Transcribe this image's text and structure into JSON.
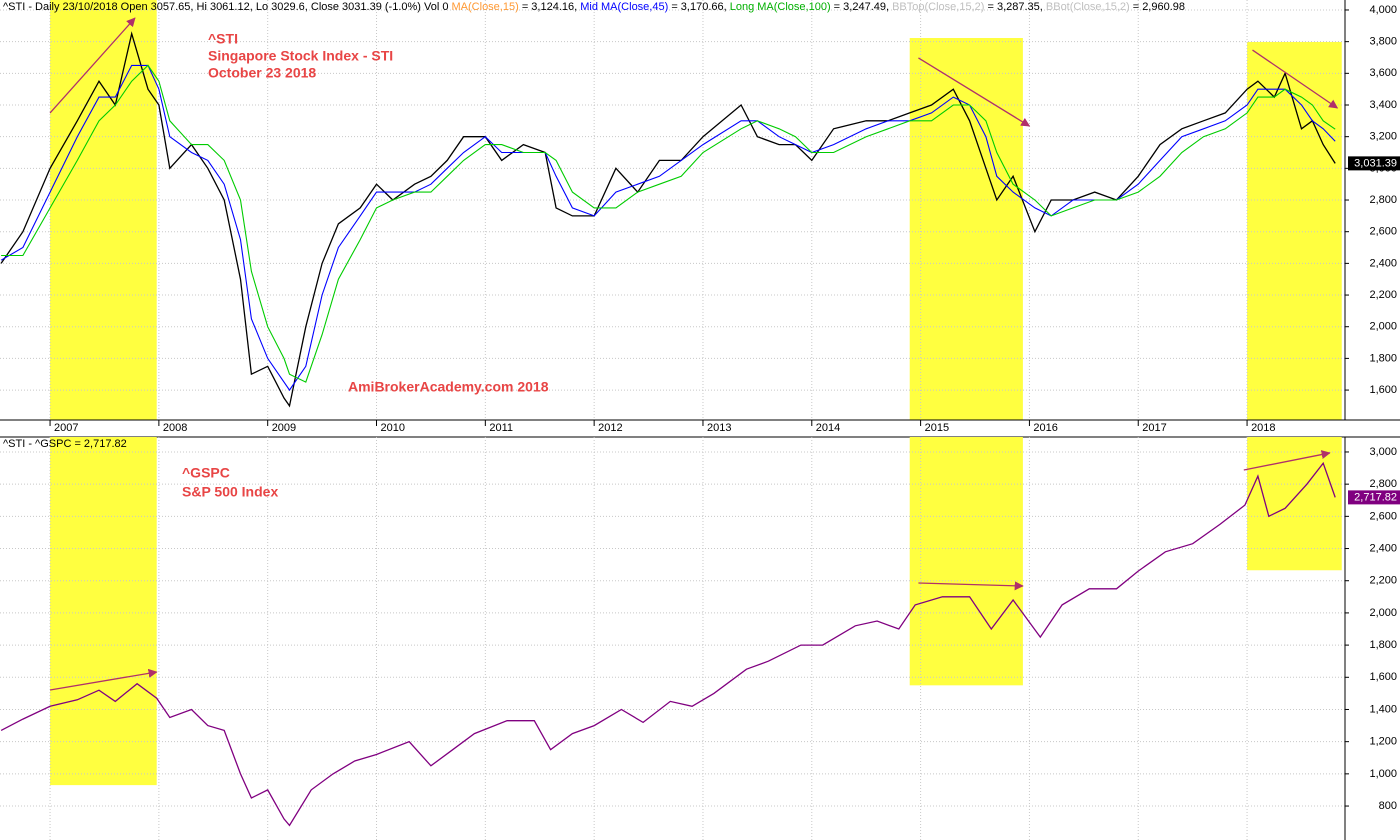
{
  "chart_data": [
    {
      "type": "line",
      "header_segments": [
        {
          "text": "^STI - Daily 23/10/2018 Open 3057.65, Hi 3061.12, Lo 3029.6, Close 3031.39 (-1.0%) Vol 0 ",
          "color": "#000000"
        },
        {
          "text": "MA(Close,15)",
          "color": "#ff9933"
        },
        {
          "text": " = 3,124.16, ",
          "color": "#000000"
        },
        {
          "text": "Mid MA(Close,45)",
          "color": "#0000ff"
        },
        {
          "text": " = 3,170.66, ",
          "color": "#000000"
        },
        {
          "text": "Long MA(Close,100)",
          "color": "#00b000"
        },
        {
          "text": " = 3,247.49, ",
          "color": "#000000"
        },
        {
          "text": "BBTop(Close,15,2)",
          "color": "#c0c0c0"
        },
        {
          "text": " = 3,287.35, ",
          "color": "#000000"
        },
        {
          "text": "BBot(Close,15,2)",
          "color": "#c0c0c0"
        },
        {
          "text": " = 2,960.98",
          "color": "#000000"
        }
      ],
      "annotations": [
        "^STI",
        "Singapore Stock Index - STI",
        "October 23 2018",
        "AmiBrokerAcademy.com 2018"
      ],
      "annotation_color": "#e84545",
      "x": [
        2006.55,
        2006.75,
        2007.0,
        2007.25,
        2007.45,
        2007.6,
        2007.75,
        2007.9,
        2008.0,
        2008.1,
        2008.3,
        2008.45,
        2008.6,
        2008.75,
        2008.85,
        2009.0,
        2009.15,
        2009.2,
        2009.35,
        2009.5,
        2009.65,
        2009.85,
        2010.0,
        2010.15,
        2010.35,
        2010.5,
        2010.65,
        2010.8,
        2011.0,
        2011.15,
        2011.35,
        2011.55,
        2011.65,
        2011.8,
        2012.0,
        2012.2,
        2012.4,
        2012.6,
        2012.8,
        2013.0,
        2013.35,
        2013.5,
        2013.7,
        2013.85,
        2014.0,
        2014.2,
        2014.5,
        2014.7,
        2014.9,
        2015.1,
        2015.3,
        2015.45,
        2015.6,
        2015.7,
        2015.85,
        2016.05,
        2016.2,
        2016.4,
        2016.6,
        2016.8,
        2017.0,
        2017.2,
        2017.4,
        2017.6,
        2017.8,
        2018.0,
        2018.1,
        2018.25,
        2018.35,
        2018.5,
        2018.6,
        2018.7,
        2018.81
      ],
      "series": [
        {
          "name": "Close",
          "color": "#000000",
          "values": [
            2400,
            2600,
            3000,
            3300,
            3550,
            3400,
            3850,
            3500,
            3400,
            3000,
            3150,
            3000,
            2800,
            2300,
            1700,
            1750,
            1550,
            1500,
            2000,
            2400,
            2650,
            2750,
            2900,
            2800,
            2900,
            2950,
            3050,
            3200,
            3200,
            3050,
            3150,
            3100,
            2750,
            2700,
            2700,
            3000,
            2850,
            3050,
            3050,
            3200,
            3400,
            3200,
            3150,
            3150,
            3050,
            3250,
            3300,
            3300,
            3350,
            3400,
            3500,
            3300,
            3000,
            2800,
            2950,
            2600,
            2800,
            2800,
            2850,
            2800,
            2950,
            3150,
            3250,
            3300,
            3350,
            3500,
            3550,
            3450,
            3600,
            3250,
            3300,
            3150,
            3031.39
          ]
        },
        {
          "name": "Mid MA(Close,45)",
          "color": "#0000ff",
          "values": [
            2420,
            2500,
            2850,
            3200,
            3450,
            3450,
            3650,
            3650,
            3500,
            3200,
            3100,
            3050,
            2900,
            2550,
            2050,
            1800,
            1650,
            1600,
            1750,
            2200,
            2500,
            2700,
            2850,
            2850,
            2850,
            2900,
            3000,
            3100,
            3200,
            3100,
            3100,
            3100,
            2950,
            2750,
            2700,
            2850,
            2900,
            2950,
            3050,
            3150,
            3300,
            3300,
            3200,
            3150,
            3100,
            3150,
            3250,
            3300,
            3300,
            3350,
            3450,
            3400,
            3200,
            2950,
            2850,
            2750,
            2700,
            2800,
            2800,
            2800,
            2900,
            3050,
            3200,
            3250,
            3300,
            3400,
            3500,
            3500,
            3500,
            3400,
            3300,
            3250,
            3170.66
          ]
        },
        {
          "name": "Long MA(Close,100)",
          "color": "#00cc00",
          "values": [
            2450,
            2450,
            2750,
            3050,
            3300,
            3400,
            3550,
            3650,
            3550,
            3300,
            3150,
            3150,
            3050,
            2800,
            2350,
            2000,
            1800,
            1700,
            1650,
            1950,
            2300,
            2550,
            2750,
            2800,
            2850,
            2850,
            2950,
            3050,
            3150,
            3150,
            3100,
            3100,
            3050,
            2850,
            2750,
            2750,
            2850,
            2900,
            2950,
            3100,
            3250,
            3300,
            3250,
            3200,
            3100,
            3100,
            3200,
            3250,
            3300,
            3300,
            3400,
            3400,
            3300,
            3100,
            2900,
            2800,
            2700,
            2750,
            2800,
            2800,
            2850,
            2950,
            3100,
            3200,
            3250,
            3350,
            3450,
            3450,
            3500,
            3450,
            3400,
            3300,
            3247.49
          ]
        }
      ],
      "xlim": [
        2006.54,
        2018.9
      ],
      "ylim": [
        1411,
        4063
      ],
      "xticks": [
        2007,
        2008,
        2009,
        2010,
        2011,
        2012,
        2013,
        2014,
        2015,
        2016,
        2017,
        2018
      ],
      "yticks": [
        {
          "value": 1600,
          "label": "1,600"
        },
        {
          "value": 1800,
          "label": "1,800"
        },
        {
          "value": 2000,
          "label": "2,000"
        },
        {
          "value": 2200,
          "label": "2,200"
        },
        {
          "value": 2400,
          "label": "2,400"
        },
        {
          "value": 2600,
          "label": "2,600"
        },
        {
          "value": 2800,
          "label": "2,800"
        },
        {
          "value": 3000,
          "label": "3,000"
        },
        {
          "value": 3200,
          "label": "3,200"
        },
        {
          "value": 3400,
          "label": "3,400"
        },
        {
          "value": 3600,
          "label": "3,600"
        },
        {
          "value": 3800,
          "label": "3,800"
        },
        {
          "value": 4000,
          "label": "4,000"
        }
      ],
      "last_value": 3031.39,
      "last_value_label": "3,031.39",
      "last_value_color": "#000000",
      "highlight_color": "#ffff40",
      "highlights": [
        {
          "x": [
            2007.0,
            2007.98
          ],
          "y": [
            1411,
            4063
          ]
        },
        {
          "x": [
            2014.9,
            2015.94
          ],
          "y": [
            1411,
            3823
          ]
        },
        {
          "x": [
            2018.0,
            2018.87
          ],
          "y": [
            1411,
            3798
          ]
        }
      ],
      "trend_color": "#b0306a",
      "trend_lines": [
        {
          "x": [
            2007.0,
            2007.78
          ],
          "y": [
            3350,
            3949
          ]
        },
        {
          "x": [
            2014.98,
            2016.0
          ],
          "y": [
            3697,
            3267
          ]
        },
        {
          "x": [
            2018.05,
            2018.83
          ],
          "y": [
            3747,
            3381
          ]
        }
      ],
      "grid": true
    },
    {
      "type": "line",
      "header_segments": [
        {
          "text": "^STI - ^GSPC = 2,717.82",
          "color": "#000000"
        }
      ],
      "annotations": [
        "^GSPC",
        "S&P 500 Index"
      ],
      "annotation_color": "#e84545",
      "x": [
        2006.55,
        2006.75,
        2007.0,
        2007.25,
        2007.45,
        2007.6,
        2007.8,
        2007.98,
        2008.1,
        2008.3,
        2008.45,
        2008.6,
        2008.75,
        2008.85,
        2009.0,
        2009.15,
        2009.2,
        2009.4,
        2009.6,
        2009.8,
        2010.0,
        2010.3,
        2010.5,
        2010.7,
        2010.9,
        2011.2,
        2011.45,
        2011.6,
        2011.8,
        2012.0,
        2012.25,
        2012.45,
        2012.7,
        2012.9,
        2013.1,
        2013.4,
        2013.6,
        2013.9,
        2014.1,
        2014.4,
        2014.6,
        2014.8,
        2014.95,
        2015.2,
        2015.45,
        2015.65,
        2015.85,
        2016.1,
        2016.3,
        2016.55,
        2016.8,
        2017.0,
        2017.25,
        2017.5,
        2017.75,
        2017.98,
        2018.1,
        2018.2,
        2018.35,
        2018.55,
        2018.7,
        2018.81
      ],
      "series": [
        {
          "name": "^GSPC",
          "color": "#800080",
          "values": [
            1270,
            1340,
            1420,
            1460,
            1520,
            1450,
            1560,
            1470,
            1350,
            1400,
            1300,
            1270,
            1000,
            850,
            900,
            720,
            680,
            900,
            1000,
            1080,
            1120,
            1200,
            1050,
            1150,
            1250,
            1330,
            1330,
            1150,
            1250,
            1300,
            1400,
            1320,
            1450,
            1420,
            1500,
            1650,
            1700,
            1800,
            1800,
            1920,
            1950,
            1900,
            2050,
            2100,
            2100,
            1900,
            2080,
            1850,
            2050,
            2150,
            2150,
            2260,
            2380,
            2430,
            2550,
            2670,
            2850,
            2600,
            2650,
            2800,
            2930,
            2717.82
          ]
        }
      ],
      "xlim": [
        2006.54,
        2018.9
      ],
      "ylim": [
        589,
        3093
      ],
      "yticks": [
        800,
        {
          "value": 1000,
          "label": "1,000"
        },
        {
          "value": 1200,
          "label": "1,200"
        },
        {
          "value": 1400,
          "label": "1,400"
        },
        {
          "value": 1600,
          "label": "1,600"
        },
        {
          "value": 1800,
          "label": "1,800"
        },
        {
          "value": 2000,
          "label": "2,000"
        },
        {
          "value": 2200,
          "label": "2,200"
        },
        {
          "value": 2400,
          "label": "2,400"
        },
        {
          "value": 2600,
          "label": "2,600"
        },
        {
          "value": 2800,
          "label": "2,800"
        },
        {
          "value": 3000,
          "label": "3,000"
        }
      ],
      "last_value": 2717.82,
      "last_value_label": "2,717.82",
      "last_value_color": "#800080",
      "highlight_color": "#ffff40",
      "highlights": [
        {
          "x": [
            2007.0,
            2007.98
          ],
          "y": [
            930,
            3093
          ]
        },
        {
          "x": [
            2014.9,
            2015.94
          ],
          "y": [
            1550,
            3093
          ]
        },
        {
          "x": [
            2018.0,
            2018.87
          ],
          "y": [
            2265,
            3093
          ]
        }
      ],
      "trend_color": "#b0306a",
      "trend_lines": [
        {
          "x": [
            2007.0,
            2007.98
          ],
          "y": [
            1521,
            1633
          ]
        },
        {
          "x": [
            2014.98,
            2015.94
          ],
          "y": [
            2186,
            2167
          ]
        },
        {
          "x": [
            2017.97,
            2018.76
          ],
          "y": [
            2888,
            2994
          ]
        }
      ],
      "grid": true
    }
  ]
}
